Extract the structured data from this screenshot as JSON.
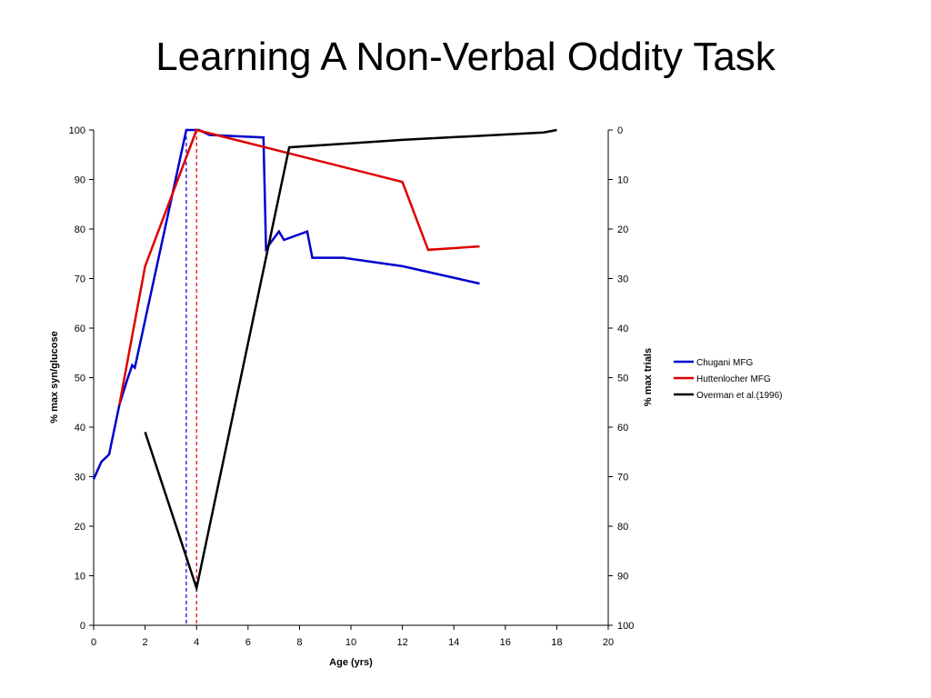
{
  "slide": {
    "title": "Learning A Non-Verbal Oddity Task"
  },
  "chart_data": {
    "type": "line",
    "xlabel": "Age (yrs)",
    "ylabel": "% max syn/glucose",
    "y2label": "% max trials",
    "xlim": [
      0,
      20
    ],
    "ylim": [
      0,
      100
    ],
    "y2lim": [
      0,
      100
    ],
    "y2_inverted": true,
    "x_ticks": [
      0,
      2,
      4,
      6,
      8,
      10,
      12,
      14,
      16,
      18,
      20
    ],
    "y_ticks": [
      0,
      10,
      20,
      30,
      40,
      50,
      60,
      70,
      80,
      90,
      100
    ],
    "y2_ticks": [
      0,
      10,
      20,
      30,
      40,
      50,
      60,
      70,
      80,
      90,
      100
    ],
    "grid": false,
    "legend_position": "right",
    "series": [
      {
        "name": "Chugani MFG",
        "color": "#0000cc",
        "axis": "left",
        "x": [
          0,
          0.3,
          0.6,
          1.0,
          1.3,
          1.5,
          1.6,
          3.6,
          4.1,
          4.5,
          6.6,
          6.7,
          7.2,
          7.4,
          8.3,
          8.5,
          9.7,
          12.0,
          15.0
        ],
        "y": [
          29.5,
          33,
          34.5,
          44.5,
          49.5,
          52.5,
          52,
          100,
          100,
          99,
          98.5,
          76,
          79.5,
          77.8,
          79.5,
          74.2,
          74.2,
          72.5,
          69
        ]
      },
      {
        "name": "Huttenlocher MFG",
        "color": "#dd0000",
        "axis": "left",
        "x": [
          1.0,
          2.0,
          4.0,
          12.0,
          13.0,
          15.0
        ],
        "y": [
          44.5,
          72.5,
          100,
          89.5,
          75.8,
          76.5
        ]
      },
      {
        "name": "Overman et al.(1996)",
        "color": "#000000",
        "axis": "right",
        "x": [
          2.0,
          4.0,
          7.6,
          12.0,
          17.5,
          18.0
        ],
        "y": [
          61,
          92.5,
          3.5,
          2,
          0.5,
          0
        ]
      }
    ],
    "reference_lines": [
      {
        "x": 3.6,
        "color": "#0000cc",
        "style": "dashed"
      },
      {
        "x": 4.0,
        "color": "#dd0000",
        "style": "dashed"
      }
    ]
  }
}
